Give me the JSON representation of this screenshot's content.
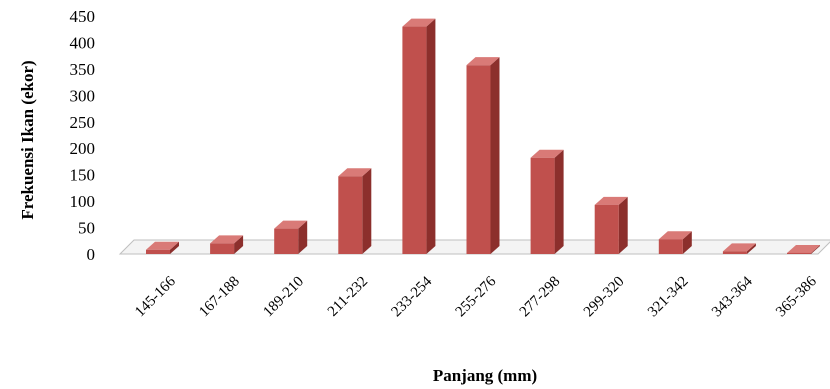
{
  "chart_data": {
    "type": "bar",
    "categories": [
      "145-166",
      "167-188",
      "189-210",
      "211-232",
      "233-254",
      "255-276",
      "277-298",
      "299-320",
      "321-342",
      "343-364",
      "365-386"
    ],
    "values": [
      8,
      20,
      48,
      147,
      430,
      357,
      182,
      93,
      28,
      5,
      2
    ],
    "xlabel": "Panjang (mm)",
    "ylabel": "Frekuensi Ikan (ekor)",
    "ylim": [
      0,
      450
    ],
    "yticks": [
      0,
      50,
      100,
      150,
      200,
      250,
      300,
      350,
      400,
      450
    ],
    "grid": false,
    "legend": "none",
    "style": "3d",
    "colors": {
      "bar_front": "#c0504d",
      "bar_side": "#8c2f2c",
      "bar_top": "#d97a77",
      "floor": "#f4f4f4",
      "floor_edge": "#bfbfbf"
    }
  }
}
